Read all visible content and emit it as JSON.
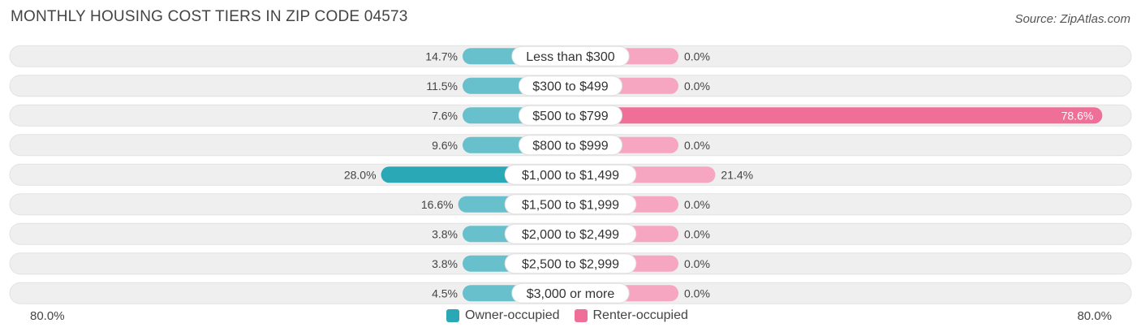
{
  "title": "MONTHLY HOUSING COST TIERS IN ZIP CODE 04573",
  "source": "Source: ZipAtlas.com",
  "axis": {
    "left_label": "80.0%",
    "right_label": "80.0%"
  },
  "legend": {
    "owner_label": "Owner-occupied",
    "renter_label": "Renter-occupied"
  },
  "colors": {
    "owner": "#67c0cb",
    "owner_strong": "#2aa8b5",
    "renter": "#f7a6c1",
    "renter_strong": "#f06f99",
    "row_bg": "#efefef"
  },
  "chart_data": {
    "type": "bar",
    "orientation": "horizontal-diverging",
    "categories": [
      "Less than $300",
      "$300 to $499",
      "$500 to $799",
      "$800 to $999",
      "$1,000 to $1,499",
      "$1,500 to $1,999",
      "$2,000 to $2,499",
      "$2,500 to $2,999",
      "$3,000 or more"
    ],
    "series": [
      {
        "name": "Owner-occupied",
        "values": [
          14.7,
          11.5,
          7.6,
          9.6,
          28.0,
          16.6,
          3.8,
          3.8,
          4.5
        ],
        "labels": [
          "14.7%",
          "11.5%",
          "7.6%",
          "9.6%",
          "28.0%",
          "16.6%",
          "3.8%",
          "3.8%",
          "4.5%"
        ]
      },
      {
        "name": "Renter-occupied",
        "values": [
          0.0,
          0.0,
          78.6,
          0.0,
          21.4,
          0.0,
          0.0,
          0.0,
          0.0
        ],
        "labels": [
          "0.0%",
          "0.0%",
          "78.6%",
          "0.0%",
          "21.4%",
          "0.0%",
          "0.0%",
          "0.0%",
          "0.0%"
        ]
      }
    ],
    "xlim": [
      -80,
      80
    ],
    "legend_position": "bottom-center"
  }
}
